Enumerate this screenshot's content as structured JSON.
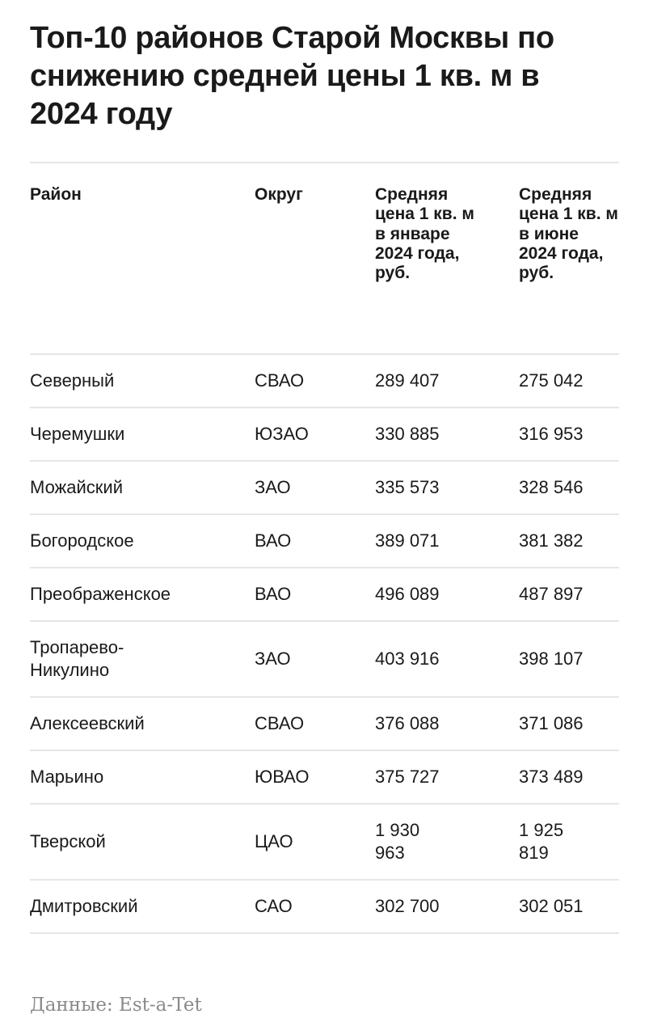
{
  "title": "Топ-10 районов Старой Москвы по снижению средней цены 1 кв. м в 2024 году",
  "table": {
    "headers": [
      "Район",
      "Округ",
      "Средняя цена 1 кв. м в январе 2024 года, руб.",
      "Средняя цена 1 кв. м в июне 2024 года, руб."
    ],
    "rows": [
      {
        "district": "Северный",
        "okrug": "СВАО",
        "jan": "289 407",
        "jun": "275 042"
      },
      {
        "district": "Черемушки",
        "okrug": "ЮЗАО",
        "jan": "330 885",
        "jun": "316 953"
      },
      {
        "district": "Можайский",
        "okrug": "ЗАО",
        "jan": "335 573",
        "jun": "328 546"
      },
      {
        "district": "Богородское",
        "okrug": "ВАО",
        "jan": "389 071",
        "jun": "381 382"
      },
      {
        "district": "Преображенское",
        "okrug": "ВАО",
        "jan": "496 089",
        "jun": "487 897"
      },
      {
        "district": "Тропарево-Никулино",
        "okrug": "ЗАО",
        "jan": "403 916",
        "jun": "398 107"
      },
      {
        "district": "Алексеевский",
        "okrug": "СВАО",
        "jan": "376 088",
        "jun": "371 086"
      },
      {
        "district": "Марьино",
        "okrug": "ЮВАО",
        "jan": "375 727",
        "jun": "373 489"
      },
      {
        "district": "Тверской",
        "okrug": "ЦАО",
        "jan": "1 930 963",
        "jun": "1 925 819"
      },
      {
        "district": "Дмитровский",
        "okrug": "САО",
        "jan": "302 700",
        "jun": "302 051"
      }
    ]
  },
  "footer": "Данные: Est-a-Tet"
}
